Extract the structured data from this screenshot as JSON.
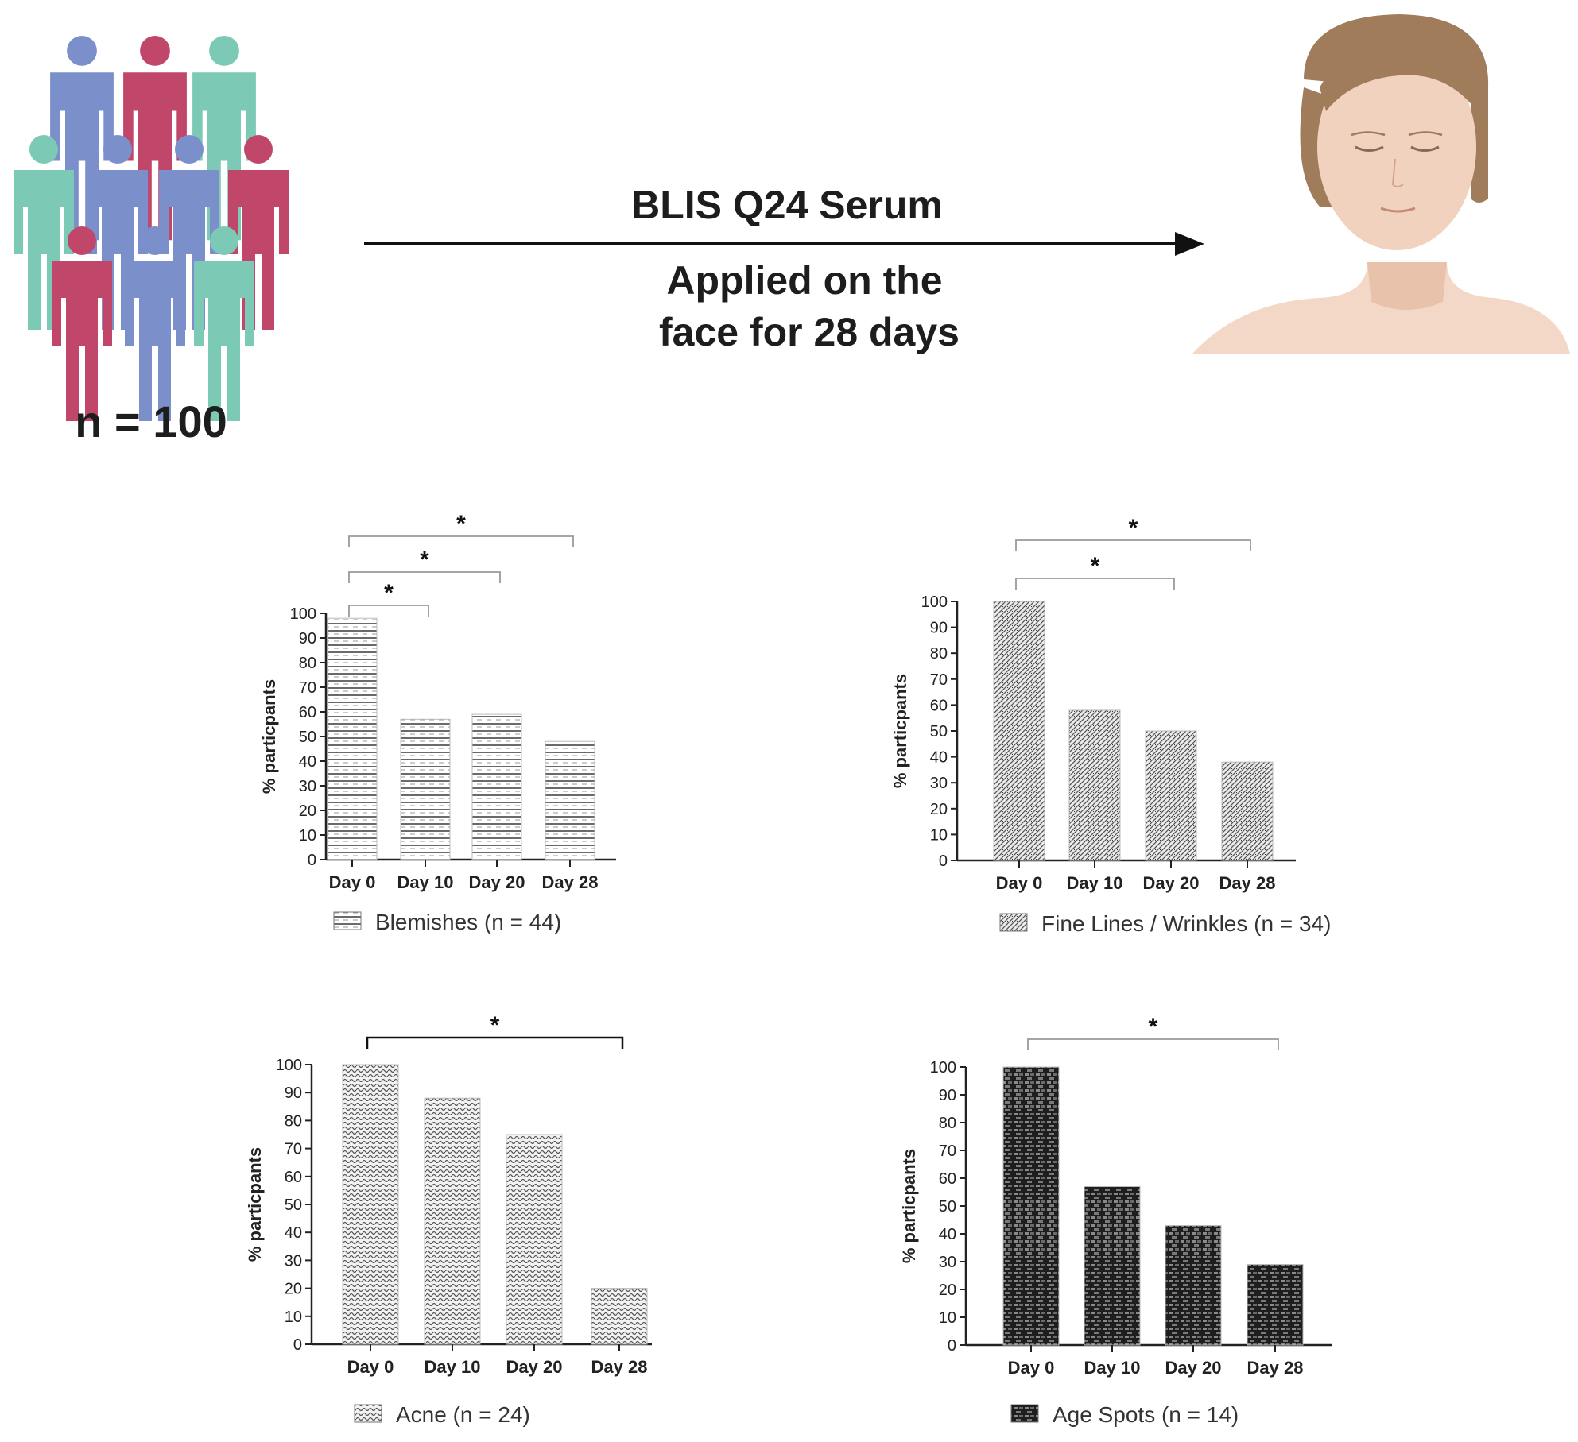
{
  "header": {
    "cohort": "n = 100",
    "treatment": "BLIS Q24 Serum",
    "application_line1": "Applied on the",
    "application_line2": "face for 28 days"
  },
  "icons": {
    "people": "people-group-icon",
    "face": "woman-face-icon",
    "arrow": "arrow-right-icon"
  },
  "colors": {
    "blue": "#7B8FCB",
    "crimson": "#C0466A",
    "teal": "#7CC9B6",
    "hair": "#A07C5A",
    "skin": "#F1D2BE",
    "skin_shade": "#E8C0A8"
  },
  "chart_data": [
    {
      "type": "bar",
      "title": "Blemishes (n = 44)",
      "legend": "Blemishes (n = 44)",
      "categories": [
        "Day 0",
        "Day 10",
        "Day 20",
        "Day 28"
      ],
      "values": [
        98,
        57,
        59,
        48
      ],
      "xlabel": "",
      "ylabel": "% particpants",
      "ylim": [
        0,
        100
      ],
      "yticks": [
        0,
        10,
        20,
        30,
        40,
        50,
        60,
        70,
        80,
        90,
        100
      ],
      "pattern": "horizontal-lines",
      "significance": [
        {
          "from": "Day 0",
          "to": "Day 10",
          "label": "*"
        },
        {
          "from": "Day 0",
          "to": "Day 20",
          "label": "*"
        },
        {
          "from": "Day 0",
          "to": "Day 28",
          "label": "*"
        }
      ]
    },
    {
      "type": "bar",
      "title": "Fine Lines / Wrinkles (n = 34)",
      "legend": "Fine Lines / Wrinkles (n = 34)",
      "categories": [
        "Day 0",
        "Day 10",
        "Day 20",
        "Day 28"
      ],
      "values": [
        100,
        58,
        50,
        38
      ],
      "xlabel": "",
      "ylabel": "% particpants",
      "ylim": [
        0,
        100
      ],
      "yticks": [
        0,
        10,
        20,
        30,
        40,
        50,
        60,
        70,
        80,
        90,
        100
      ],
      "pattern": "diagonal-hatch",
      "significance": [
        {
          "from": "Day 0",
          "to": "Day 20",
          "label": "*"
        },
        {
          "from": "Day 0",
          "to": "Day 28",
          "label": "*"
        }
      ]
    },
    {
      "type": "bar",
      "title": "Acne (n = 24)",
      "legend": "Acne (n = 24)",
      "categories": [
        "Day 0",
        "Day 10",
        "Day 20",
        "Day 28"
      ],
      "values": [
        100,
        88,
        75,
        20
      ],
      "xlabel": "",
      "ylabel": "% particpants",
      "ylim": [
        0,
        100
      ],
      "yticks": [
        0,
        10,
        20,
        30,
        40,
        50,
        60,
        70,
        80,
        90,
        100
      ],
      "pattern": "wave",
      "significance": [
        {
          "from": "Day 0",
          "to": "Day 28",
          "label": "*"
        }
      ]
    },
    {
      "type": "bar",
      "title": "Age Spots (n = 14)",
      "legend": "Age Spots (n = 14)",
      "categories": [
        "Day 0",
        "Day 10",
        "Day 20",
        "Day 28"
      ],
      "values": [
        100,
        57,
        43,
        29
      ],
      "xlabel": "",
      "ylabel": "% particpants",
      "ylim": [
        0,
        100
      ],
      "yticks": [
        0,
        10,
        20,
        30,
        40,
        50,
        60,
        70,
        80,
        90,
        100
      ],
      "pattern": "dark-brick",
      "significance": [
        {
          "from": "Day 0",
          "to": "Day 28",
          "label": "*"
        }
      ]
    }
  ]
}
